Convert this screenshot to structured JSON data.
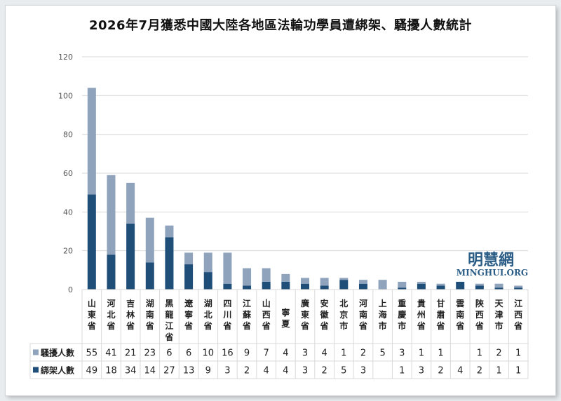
{
  "chart_data": {
    "type": "bar",
    "stacked": true,
    "title": "2026年7月獲悉中國大陸各地區法輪功學員遭綁架、騷擾人數統計",
    "categories": [
      "山東省",
      "河北省",
      "吉林省",
      "湖南省",
      "黑龍江省",
      "遼寧省",
      "湖北省",
      "四川省",
      "江蘇省",
      "山西省",
      "寧夏",
      "廣東省",
      "安徽省",
      "北京市",
      "河南省",
      "上海市",
      "重慶市",
      "貴州省",
      "甘肅省",
      "雲南省",
      "陝西省",
      "天津市",
      "江西省"
    ],
    "series": [
      {
        "name": "綁架人數",
        "color": "#1f4e79",
        "values": [
          49,
          18,
          34,
          14,
          27,
          13,
          9,
          3,
          2,
          4,
          4,
          3,
          2,
          5,
          3,
          null,
          1,
          3,
          2,
          4,
          2,
          1,
          1
        ]
      },
      {
        "name": "騷擾人數",
        "color": "#8fa3bc",
        "values": [
          55,
          41,
          21,
          23,
          6,
          6,
          10,
          16,
          9,
          7,
          4,
          3,
          4,
          1,
          2,
          5,
          3,
          1,
          1,
          null,
          1,
          2,
          1
        ]
      }
    ],
    "ylim": [
      0,
      120
    ],
    "yticks": [
      0,
      20,
      40,
      60,
      80,
      100,
      120
    ],
    "grid": true,
    "legend": "data-table"
  },
  "watermark": {
    "line1": "明慧網",
    "line2": "MINGHUI.ORG"
  }
}
